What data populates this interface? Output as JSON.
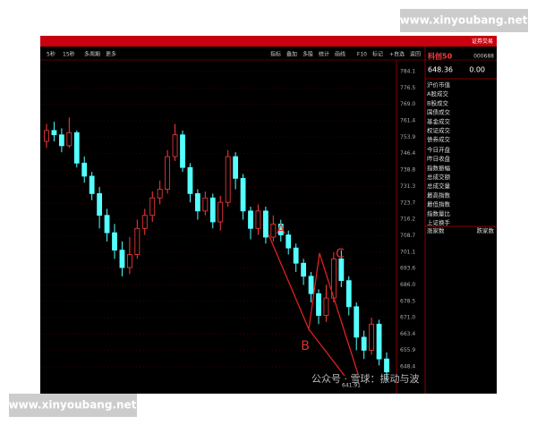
{
  "header": {
    "tab": "证券交易"
  },
  "toolbar": {
    "left": [
      "5秒",
      "15秒",
      "多周期",
      "更多"
    ],
    "right": [
      "指标",
      "叠加",
      "多股",
      "统计",
      "画线",
      "F10",
      "标记",
      "+自选",
      "返回"
    ]
  },
  "quote": {
    "name": "科创50",
    "code": "000688",
    "price": "648.36",
    "change": "0.00"
  },
  "panel": {
    "rows": [
      "沪价市值",
      "A股成交",
      "B股成交",
      "国债成交",
      "基金成交",
      "权证成交",
      "债券成交",
      "今日开盘",
      "昨日收盘",
      "指数振幅",
      "总成交额",
      "总成交量",
      "最高指数",
      "最低指数",
      "指数量比",
      "上证换手"
    ],
    "up_count": "涨家数",
    "down_count": "跌家数"
  },
  "chart_data": {
    "type": "candlestick",
    "open": [
      752,
      757,
      755,
      750,
      756,
      742,
      736,
      728,
      718,
      710,
      702,
      694,
      700,
      712,
      718,
      726,
      730,
      745,
      755,
      740,
      728,
      720,
      726,
      715,
      724,
      745,
      735,
      720,
      712,
      720,
      708,
      714,
      709,
      703,
      696,
      690,
      682,
      672,
      680,
      698,
      688,
      676,
      662,
      656,
      668,
      652
    ],
    "close": [
      757,
      755,
      750,
      756,
      742,
      736,
      728,
      718,
      710,
      702,
      694,
      700,
      712,
      718,
      726,
      730,
      745,
      755,
      740,
      728,
      720,
      726,
      715,
      724,
      745,
      735,
      720,
      712,
      720,
      708,
      714,
      709,
      703,
      696,
      690,
      682,
      672,
      680,
      698,
      688,
      676,
      662,
      656,
      668,
      652,
      646
    ],
    "high": [
      760,
      761,
      758,
      763,
      757,
      745,
      738,
      731,
      721,
      714,
      706,
      708,
      716,
      721,
      729,
      734,
      748,
      760,
      757,
      742,
      730,
      729,
      728,
      727,
      748,
      747,
      737,
      722,
      723,
      722,
      718,
      716,
      711,
      705,
      698,
      692,
      684,
      686,
      701,
      702,
      690,
      678,
      665,
      671,
      670,
      655
    ],
    "low": [
      749,
      752,
      747,
      749,
      740,
      733,
      725,
      712,
      706,
      698,
      690,
      691,
      698,
      709,
      715,
      723,
      728,
      743,
      738,
      724,
      716,
      718,
      712,
      711,
      722,
      730,
      716,
      707,
      709,
      705,
      706,
      706,
      700,
      692,
      686,
      678,
      668,
      669,
      678,
      685,
      672,
      656,
      652,
      654,
      649,
      642
    ],
    "up_color": "#ff3b3b",
    "down_color": "#54ffff",
    "ylim": [
      640,
      790
    ],
    "yticks": [
      784.1,
      776.5,
      {
        "value": 769.0,
        "label": "769.0"
      },
      761.4,
      753.9,
      746.4,
      738.8,
      731.3,
      723.7,
      716.2,
      708.7,
      701.1,
      693.6,
      {
        "value": 686.0,
        "label": "686.0"
      },
      678.5,
      {
        "value": 671.0,
        "label": "671.0"
      },
      663.4,
      655.9,
      648.4
    ],
    "grid": true,
    "low_label": "641.91",
    "annotations": [
      "A",
      "B",
      "C"
    ]
  },
  "watermarks": [
    "www.xinyoubang.net",
    "www.xinyoubang.net",
    "公众号 · 雪球：振动与波"
  ]
}
